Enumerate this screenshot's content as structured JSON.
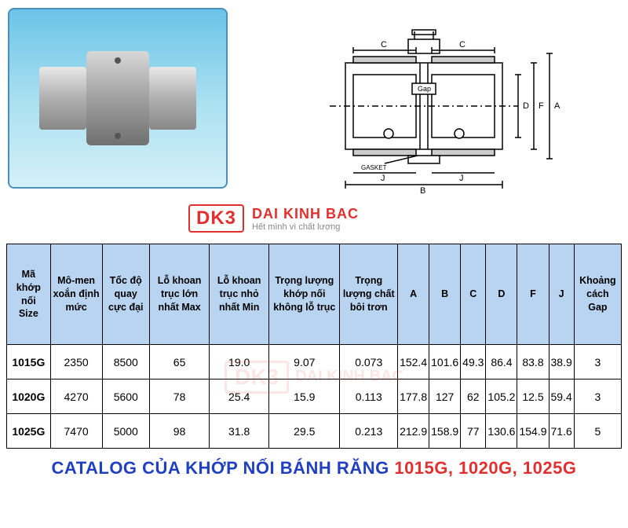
{
  "logo": {
    "abbrev": "DK3",
    "name": "DAI KINH BAC",
    "tagline": "Hết mình vì chất lượng"
  },
  "diagram": {
    "gap_label": "Gap",
    "gasket_label": "GASKET",
    "dims": {
      "A": "A",
      "B": "B",
      "C": "C",
      "D": "D",
      "F": "F",
      "J": "J"
    }
  },
  "table": {
    "header_bg": "#b8d4f0",
    "border_color": "#000000",
    "columns": [
      "Mã khớp nối\nSize",
      "Mô-men xoắn định mức",
      "Tốc độ quay cực đại",
      "Lỗ khoan trục lớn nhất Max",
      "Lỗ khoan trục nhỏ nhất Min",
      "Trọng lượng khớp nối không lỗ trục",
      "Trọng lượng chất bôi trơn",
      "A",
      "B",
      "C",
      "D",
      "F",
      "J",
      "Khoảng cách\nGap"
    ],
    "rows": [
      [
        "1015G",
        "2350",
        "8500",
        "65",
        "19.0",
        "9.07",
        "0.073",
        "152.4",
        "101.6",
        "49.3",
        "86.4",
        "83.8",
        "38.9",
        "3"
      ],
      [
        "1020G",
        "4270",
        "5600",
        "78",
        "25.4",
        "15.9",
        "0.113",
        "177.8",
        "127",
        "62",
        "105.2",
        "12.5",
        "59.4",
        "3"
      ],
      [
        "1025G",
        "7470",
        "5000",
        "98",
        "31.8",
        "29.5",
        "0.213",
        "212.9",
        "158.9",
        "77",
        "130.6",
        "154.9",
        "71.6",
        "5"
      ]
    ]
  },
  "caption": {
    "prefix": "CATALOG CỦA KHỚP NỐI BÁNH RĂNG ",
    "models": "1015G, 1020G, 1025G"
  },
  "colors": {
    "accent_red": "#e03030",
    "accent_blue": "#2040c0",
    "header_bg": "#b8d4f0",
    "photo_bg_top": "#6bc4e8",
    "photo_bg_bottom": "#d4f0f8"
  }
}
